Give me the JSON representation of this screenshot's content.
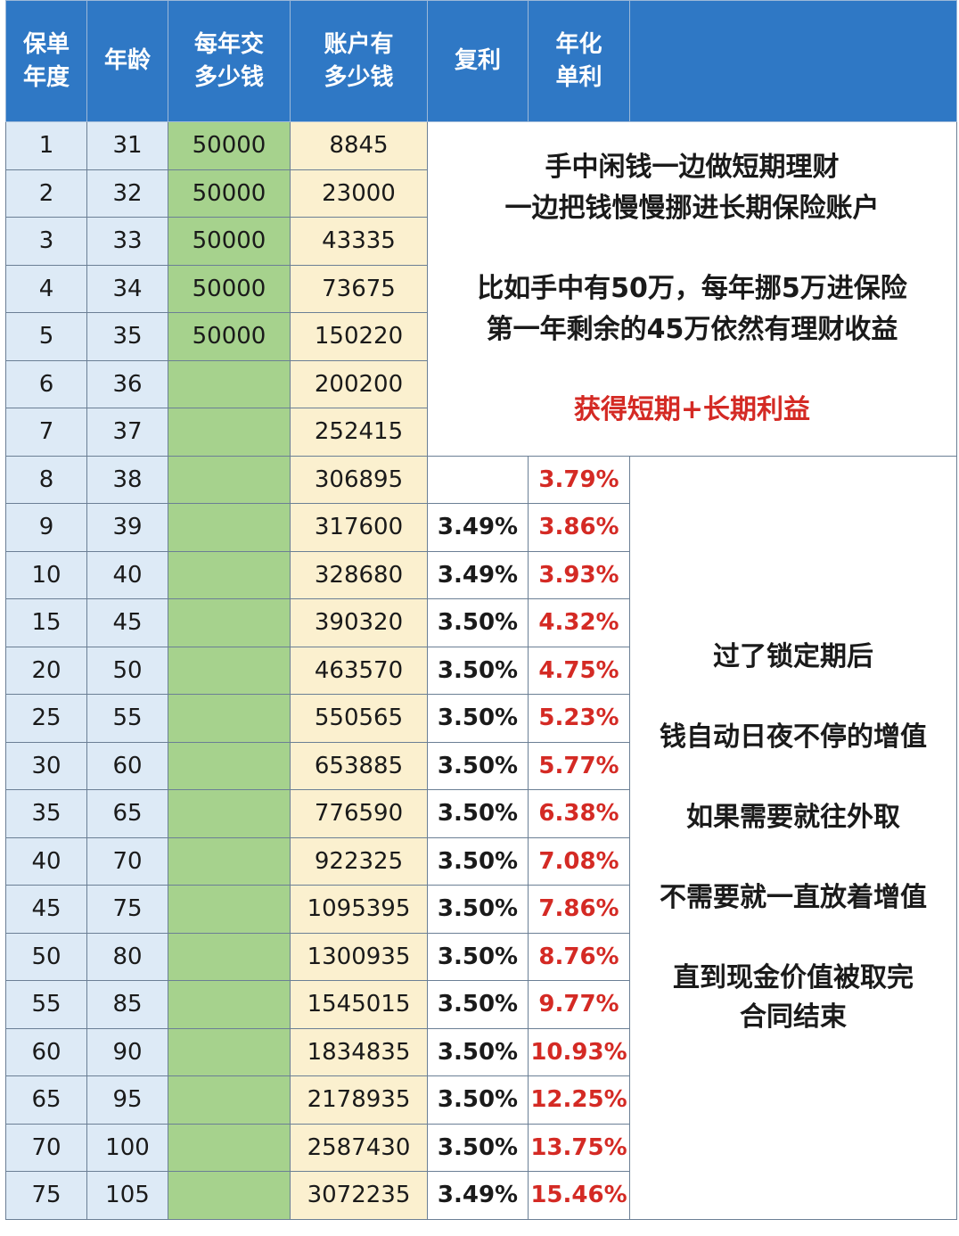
{
  "headers": {
    "year": [
      "保单",
      "年度"
    ],
    "age": [
      "年龄"
    ],
    "pay": [
      "每年交",
      "多少钱"
    ],
    "account": [
      "账户有",
      "多少钱"
    ],
    "compound": [
      "复利"
    ],
    "simple": [
      "年化",
      "单利"
    ],
    "extra": ""
  },
  "rows": [
    {
      "year": "1",
      "age": "31",
      "pay": "50000",
      "account": "8845",
      "compound": "",
      "simple": ""
    },
    {
      "year": "2",
      "age": "32",
      "pay": "50000",
      "account": "23000",
      "compound": "",
      "simple": ""
    },
    {
      "year": "3",
      "age": "33",
      "pay": "50000",
      "account": "43335",
      "compound": "",
      "simple": ""
    },
    {
      "year": "4",
      "age": "34",
      "pay": "50000",
      "account": "73675",
      "compound": "",
      "simple": ""
    },
    {
      "year": "5",
      "age": "35",
      "pay": "50000",
      "account": "150220",
      "compound": "",
      "simple": ""
    },
    {
      "year": "6",
      "age": "36",
      "pay": "",
      "account": "200200",
      "compound": "",
      "simple": ""
    },
    {
      "year": "7",
      "age": "37",
      "pay": "",
      "account": "252415",
      "compound": "",
      "simple": ""
    },
    {
      "year": "8",
      "age": "38",
      "pay": "",
      "account": "306895",
      "compound": "",
      "simple": "3.79%"
    },
    {
      "year": "9",
      "age": "39",
      "pay": "",
      "account": "317600",
      "compound": "3.49%",
      "simple": "3.86%"
    },
    {
      "year": "10",
      "age": "40",
      "pay": "",
      "account": "328680",
      "compound": "3.49%",
      "simple": "3.93%"
    },
    {
      "year": "15",
      "age": "45",
      "pay": "",
      "account": "390320",
      "compound": "3.50%",
      "simple": "4.32%"
    },
    {
      "year": "20",
      "age": "50",
      "pay": "",
      "account": "463570",
      "compound": "3.50%",
      "simple": "4.75%"
    },
    {
      "year": "25",
      "age": "55",
      "pay": "",
      "account": "550565",
      "compound": "3.50%",
      "simple": "5.23%"
    },
    {
      "year": "30",
      "age": "60",
      "pay": "",
      "account": "653885",
      "compound": "3.50%",
      "simple": "5.77%"
    },
    {
      "year": "35",
      "age": "65",
      "pay": "",
      "account": "776590",
      "compound": "3.50%",
      "simple": "6.38%"
    },
    {
      "year": "40",
      "age": "70",
      "pay": "",
      "account": "922325",
      "compound": "3.50%",
      "simple": "7.08%"
    },
    {
      "year": "45",
      "age": "75",
      "pay": "",
      "account": "1095395",
      "compound": "3.50%",
      "simple": "7.86%"
    },
    {
      "year": "50",
      "age": "80",
      "pay": "",
      "account": "1300935",
      "compound": "3.50%",
      "simple": "8.76%"
    },
    {
      "year": "55",
      "age": "85",
      "pay": "",
      "account": "1545015",
      "compound": "3.50%",
      "simple": "9.77%"
    },
    {
      "year": "60",
      "age": "90",
      "pay": "",
      "account": "1834835",
      "compound": "3.50%",
      "simple": "10.93%"
    },
    {
      "year": "65",
      "age": "95",
      "pay": "",
      "account": "2178935",
      "compound": "3.50%",
      "simple": "12.25%"
    },
    {
      "year": "70",
      "age": "100",
      "pay": "",
      "account": "2587430",
      "compound": "3.50%",
      "simple": "13.75%"
    },
    {
      "year": "75",
      "age": "105",
      "pay": "",
      "account": "3072235",
      "compound": "3.49%",
      "simple": "15.46%"
    }
  ],
  "note_top": {
    "line1": "手中闲钱一边做短期理财",
    "line2": "一边把钱慢慢挪进长期保险账户",
    "line3": "比如手中有50万，每年挪5万进保险",
    "line4": "第一年剩余的45万依然有理财收益",
    "highlight": "获得短期+长期利益"
  },
  "note_bottom": {
    "line1": "过了锁定期后",
    "line2": "钱自动日夜不停的增值",
    "line3": "如果需要就往外取",
    "line4": "不需要就一直放着增值",
    "line5": "直到现金价值被取完",
    "line6": "合同结束"
  },
  "colors": {
    "header_bg": "#2f78c5",
    "year_age_bg": "#ddeaf6",
    "pay_bg": "#a6d28d",
    "account_bg": "#fbf0cf",
    "rate_red": "#d42a24"
  }
}
